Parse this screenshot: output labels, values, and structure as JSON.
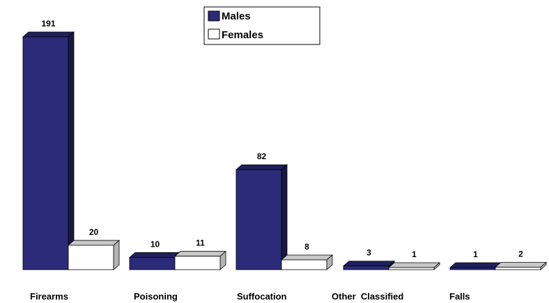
{
  "chart_data": {
    "type": "bar",
    "style": "3d-clustered",
    "categories": [
      "Firearms",
      "Poisoning",
      "Suffocation",
      "Other  Classified",
      "Falls"
    ],
    "series": [
      {
        "name": "Males",
        "values": [
          191,
          10,
          82,
          3,
          1
        ],
        "color": "#2b2b7a"
      },
      {
        "name": "Females",
        "values": [
          20,
          11,
          8,
          1,
          2
        ],
        "color": "#ffffff"
      }
    ],
    "ylim": [
      0,
      191
    ],
    "grid": false,
    "legend": "top-center",
    "title": "",
    "xlabel": "",
    "ylabel": ""
  }
}
